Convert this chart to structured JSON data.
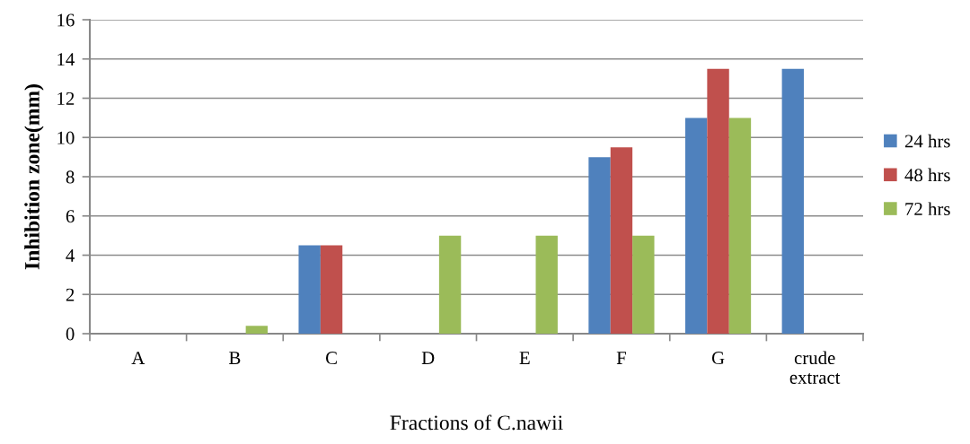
{
  "chart_data": {
    "type": "bar",
    "xlabel": "Fractions of C.nawii",
    "ylabel": "Inhibition zone(mm)",
    "categories": [
      "A",
      "B",
      "C",
      "D",
      "E",
      "F",
      "G",
      "crude\nextract"
    ],
    "series": [
      {
        "name": "24 hrs",
        "color": "#4f81bd",
        "values": [
          0,
          0,
          4.5,
          0,
          0,
          9,
          11,
          13.5
        ]
      },
      {
        "name": "48 hrs",
        "color": "#c0504d",
        "values": [
          0,
          0,
          4.5,
          0,
          0,
          9.5,
          13.5,
          0
        ]
      },
      {
        "name": "72 hrs",
        "color": "#9bbb59",
        "values": [
          0,
          0.4,
          0,
          5,
          5,
          5,
          11,
          0
        ]
      }
    ],
    "ylim": [
      0,
      16
    ],
    "yticks": [
      0,
      2,
      4,
      6,
      8,
      10,
      12,
      14,
      16
    ],
    "grid": "y",
    "legend": "right"
  }
}
